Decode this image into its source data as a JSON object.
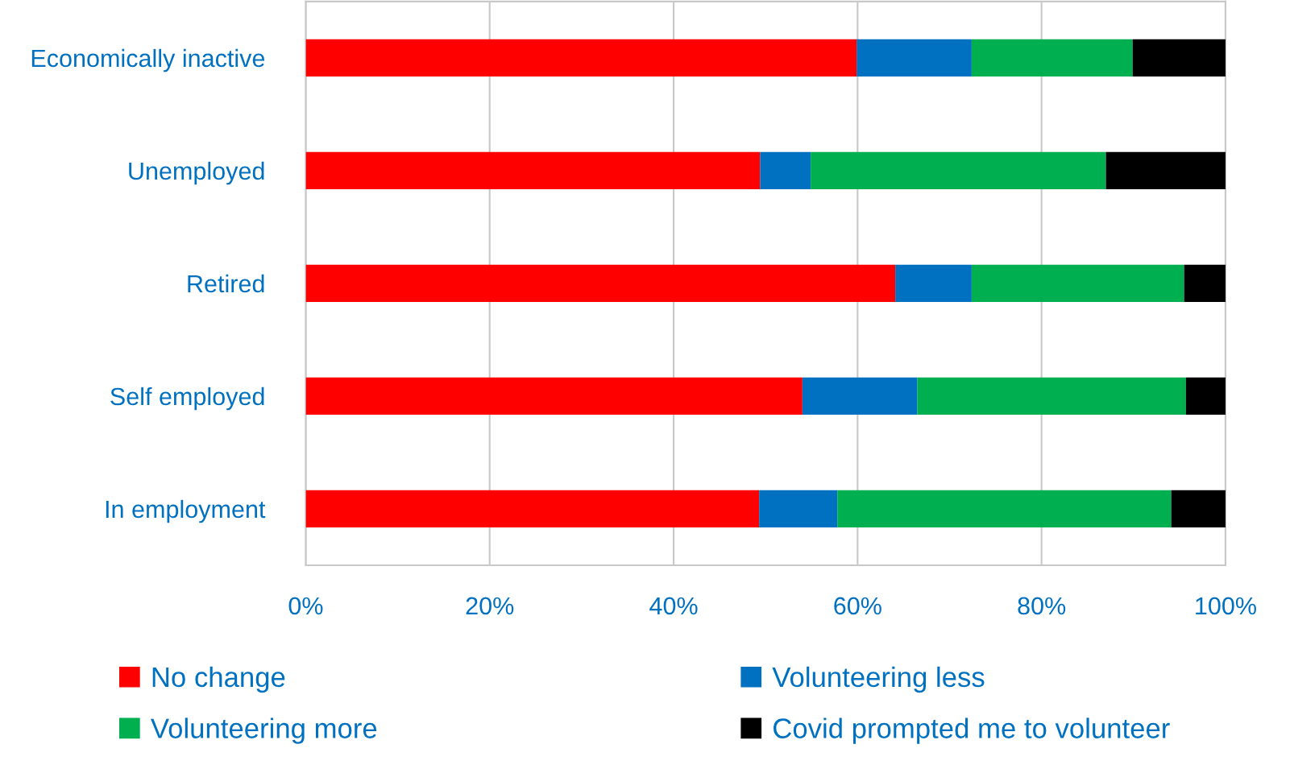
{
  "chart_data": {
    "type": "bar",
    "orientation": "horizontal",
    "stacked": true,
    "categories": [
      "Economically inactive",
      "Unemployed",
      "Retired",
      "Self employed",
      "In employment"
    ],
    "series": [
      {
        "name": "No change",
        "color": "#ff0000",
        "values": [
          59.9,
          49.4,
          64.1,
          54.0,
          49.3
        ]
      },
      {
        "name": "Volunteering less",
        "color": "#0070c0",
        "values": [
          12.5,
          5.5,
          8.3,
          12.5,
          8.5
        ]
      },
      {
        "name": "Volunteering more",
        "color": "#00b050",
        "values": [
          17.5,
          32.1,
          23.1,
          29.2,
          36.3
        ]
      },
      {
        "name": "Covid prompted me to volunteer",
        "color": "#000000",
        "values": [
          10.1,
          13.0,
          4.5,
          4.3,
          5.9
        ]
      }
    ],
    "xlim": [
      0,
      100
    ],
    "xticks": [
      {
        "value": 0,
        "label": "0%"
      },
      {
        "value": 20,
        "label": "20%"
      },
      {
        "value": 40,
        "label": "40%"
      },
      {
        "value": 60,
        "label": "60%"
      },
      {
        "value": 80,
        "label": "80%"
      },
      {
        "value": 100,
        "label": "100%"
      }
    ],
    "grid": "x",
    "legend": "bottom"
  }
}
